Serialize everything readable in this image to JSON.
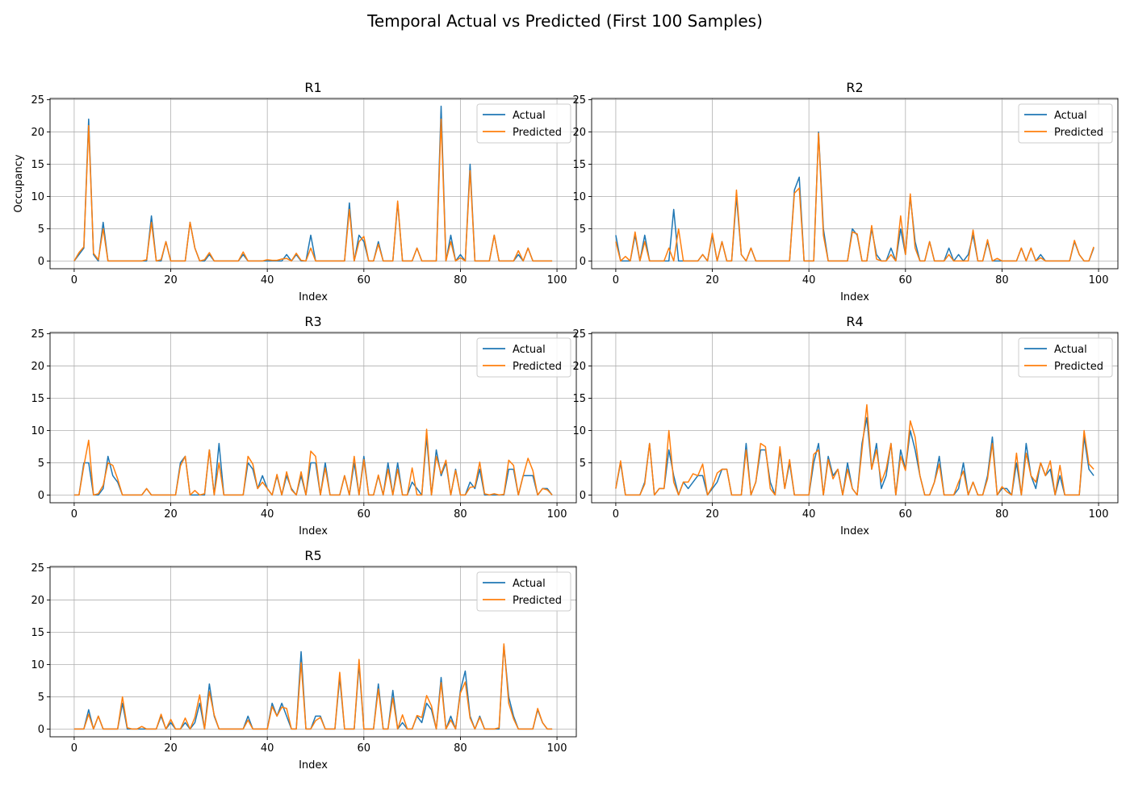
{
  "figure_title": "Temporal Actual vs Predicted (First 100 Samples)",
  "colors": {
    "actual": "#1f77b4",
    "predicted": "#ff7f0e",
    "grid": "#b0b0b0",
    "axis": "#000000"
  },
  "chart_data": [
    {
      "type": "line",
      "title": "R1",
      "xlabel": "Index",
      "ylabel": "Occupancy",
      "xlim": [
        -5,
        104
      ],
      "ylim": [
        -1.2,
        25.2
      ],
      "xticks": [
        0,
        20,
        40,
        60,
        80,
        100
      ],
      "yticks": [
        0,
        5,
        10,
        15,
        20,
        25
      ],
      "grid": true,
      "legend": "top-right",
      "series": [
        {
          "name": "Actual",
          "values": [
            0,
            1,
            2,
            22,
            1,
            0,
            6,
            0,
            0,
            0,
            0,
            0,
            0,
            0,
            0,
            0,
            7,
            0,
            0,
            3,
            0,
            0,
            0,
            0,
            6,
            2,
            0,
            0,
            1,
            0,
            0,
            0,
            0,
            0,
            0,
            1,
            0,
            0,
            0,
            0,
            0,
            0,
            0,
            0,
            1,
            0,
            1,
            0,
            0,
            4,
            0,
            0,
            0,
            0,
            0,
            0,
            0,
            9,
            0,
            4,
            3,
            0,
            0,
            3,
            0,
            0,
            0,
            9,
            0,
            0,
            0,
            2,
            0,
            0,
            0,
            0,
            24,
            0,
            4,
            0,
            1,
            0,
            15,
            0,
            0,
            0,
            0,
            4,
            0,
            0,
            0,
            0,
            1,
            0,
            2,
            0,
            0,
            0,
            0,
            0
          ]
        },
        {
          "name": "Predicted",
          "values": [
            0,
            1.3,
            2.2,
            21,
            1.2,
            0.2,
            5,
            0,
            0,
            0,
            0,
            0,
            0,
            0,
            0,
            0.2,
            6,
            0,
            0.2,
            3,
            0,
            0,
            0,
            0,
            6,
            2,
            0,
            0.2,
            1.3,
            0,
            0,
            0,
            0,
            0,
            0,
            1.4,
            0,
            0,
            0,
            0,
            0.2,
            0.1,
            0.1,
            0.3,
            0.4,
            0,
            1.2,
            0.1,
            0,
            2,
            0,
            0,
            0,
            0,
            0,
            0,
            0,
            8,
            0,
            3,
            3.8,
            0,
            0,
            2.6,
            0,
            0,
            0,
            9.3,
            0,
            0,
            0,
            2,
            0,
            0,
            0,
            0,
            22,
            0,
            3,
            0,
            0.5,
            0,
            14,
            0,
            0,
            0,
            0,
            4,
            0,
            0,
            0,
            0,
            1.6,
            0,
            2,
            0,
            0,
            0,
            0,
            0
          ]
        }
      ]
    },
    {
      "type": "line",
      "title": "R2",
      "xlabel": "Index",
      "ylabel": "",
      "xlim": [
        -5,
        104
      ],
      "ylim": [
        -1.2,
        25.2
      ],
      "xticks": [
        0,
        20,
        40,
        60,
        80,
        100
      ],
      "yticks": [
        0,
        5,
        10,
        15,
        20,
        25
      ],
      "grid": true,
      "legend": "top-right",
      "series": [
        {
          "name": "Actual",
          "values": [
            4,
            0,
            0,
            0,
            4,
            0,
            4,
            0,
            0,
            0,
            0,
            0,
            8,
            0,
            0,
            0,
            0,
            0,
            1,
            0,
            4,
            0,
            3,
            0,
            0,
            10,
            1,
            0,
            2,
            0,
            0,
            0,
            0,
            0,
            0,
            0,
            0,
            11,
            13,
            0,
            0,
            0,
            20,
            5,
            0,
            0,
            0,
            0,
            0,
            5,
            4,
            0,
            0,
            5,
            1,
            0,
            0,
            2,
            0,
            5,
            1,
            10,
            3,
            0,
            0,
            3,
            0,
            0,
            0,
            2,
            0,
            1,
            0,
            1,
            4,
            0,
            0,
            3,
            0,
            0,
            0,
            0,
            0,
            0,
            2,
            0,
            2,
            0,
            1,
            0,
            0,
            0,
            0,
            0,
            0,
            3,
            1,
            0,
            0,
            2
          ]
        },
        {
          "name": "Predicted",
          "values": [
            3,
            0,
            0.7,
            0,
            4.5,
            0,
            3,
            0,
            0,
            0,
            0,
            2,
            0,
            5,
            0,
            0,
            0,
            0,
            1,
            0,
            4.3,
            0,
            3,
            0,
            0,
            11,
            1,
            0,
            2,
            0,
            0,
            0,
            0,
            0,
            0,
            0,
            0,
            10.5,
            11.3,
            0,
            0,
            0,
            19.8,
            4,
            0,
            0,
            0,
            0,
            0,
            4.5,
            4.2,
            0,
            0,
            5.5,
            0.3,
            0,
            0,
            1,
            0,
            7,
            1,
            10.4,
            2,
            0,
            0,
            3,
            0,
            0,
            0,
            1,
            0,
            0,
            0,
            0,
            4.8,
            0,
            0,
            3.3,
            0,
            0.4,
            0,
            0,
            0,
            0,
            2,
            0,
            2,
            0,
            0.5,
            0,
            0,
            0,
            0,
            0,
            0,
            3.2,
            1,
            0,
            0,
            2.2
          ]
        }
      ]
    },
    {
      "type": "line",
      "title": "R3",
      "xlabel": "Index",
      "ylabel": "",
      "xlim": [
        -5,
        104
      ],
      "ylim": [
        -1.2,
        25.2
      ],
      "xticks": [
        0,
        20,
        40,
        60,
        80,
        100
      ],
      "yticks": [
        0,
        5,
        10,
        15,
        20,
        25
      ],
      "grid": true,
      "legend": "top-right",
      "series": [
        {
          "name": "Actual",
          "values": [
            0,
            0,
            5,
            5,
            0,
            0,
            1,
            6,
            3,
            2,
            0,
            0,
            0,
            0,
            0,
            1,
            0,
            0,
            0,
            0,
            0,
            0,
            5,
            6,
            0,
            0,
            0,
            0,
            7,
            0,
            8,
            0,
            0,
            0,
            0,
            0,
            5,
            4,
            1,
            3,
            1,
            0,
            3,
            0,
            3,
            1,
            0,
            3,
            0,
            5,
            5,
            0,
            5,
            0,
            0,
            0,
            3,
            0,
            5,
            0,
            6,
            0,
            0,
            3,
            0,
            5,
            0,
            5,
            0,
            0,
            2,
            1,
            0,
            9,
            0,
            7,
            3,
            5,
            0,
            4,
            0,
            0,
            2,
            1,
            4,
            0,
            0,
            0,
            0,
            0,
            4,
            4,
            0,
            3,
            3,
            3,
            0,
            1,
            1,
            0
          ]
        },
        {
          "name": "Predicted",
          "values": [
            0,
            0,
            4.5,
            8.5,
            0,
            0.2,
            1.5,
            5,
            4.6,
            2.5,
            0,
            0,
            0,
            0,
            0,
            1,
            0,
            0,
            0,
            0,
            0,
            0,
            4.5,
            6,
            0,
            0.7,
            0,
            0.2,
            7,
            0,
            5,
            0,
            0,
            0,
            0,
            0,
            6,
            4.8,
            1,
            2,
            1,
            0,
            3.2,
            0,
            3.6,
            0.8,
            0,
            3.6,
            0,
            6.8,
            6,
            0,
            4.2,
            0,
            0,
            0,
            3,
            0,
            6,
            0,
            5.5,
            0,
            0,
            3.1,
            0,
            4,
            0,
            4,
            0,
            0,
            4.2,
            0,
            0,
            10.2,
            0,
            6,
            3.3,
            5.4,
            0,
            3.8,
            0,
            0,
            1.2,
            1.3,
            5.1,
            0.2,
            0,
            0.2,
            0,
            0.1,
            5.4,
            4.6,
            0,
            3,
            5.7,
            3.8,
            0,
            1,
            0.8,
            0
          ]
        }
      ]
    },
    {
      "type": "line",
      "title": "R4",
      "xlabel": "Index",
      "ylabel": "",
      "xlim": [
        -5,
        104
      ],
      "ylim": [
        -1.2,
        25.2
      ],
      "xticks": [
        0,
        20,
        40,
        60,
        80,
        100
      ],
      "yticks": [
        0,
        5,
        10,
        15,
        20,
        25
      ],
      "grid": true,
      "legend": "top-right",
      "series": [
        {
          "name": "Actual",
          "values": [
            1,
            5,
            0,
            0,
            0,
            0,
            2,
            8,
            0,
            1,
            1,
            7,
            3,
            0,
            2,
            1,
            2,
            3,
            3,
            0,
            1,
            2,
            4,
            4,
            0,
            0,
            0,
            8,
            0,
            2,
            7,
            7,
            2,
            0,
            7,
            1,
            5,
            0,
            0,
            0,
            0,
            5,
            8,
            0,
            6,
            3,
            4,
            0,
            5,
            1,
            0,
            8,
            12,
            4,
            8,
            1,
            3,
            8,
            0,
            7,
            4,
            10,
            7,
            3,
            0,
            0,
            2,
            6,
            0,
            0,
            0,
            1,
            5,
            0,
            2,
            0,
            0,
            3,
            9,
            0,
            1,
            1,
            0,
            5,
            0,
            8,
            3,
            1,
            5,
            3,
            4,
            0,
            3,
            0,
            0,
            0,
            0,
            9,
            4,
            3
          ]
        },
        {
          "name": "Predicted",
          "values": [
            1,
            5.3,
            0,
            0,
            0,
            0,
            1.7,
            8,
            0,
            1,
            1,
            10,
            2,
            0,
            2,
            2,
            3.3,
            3,
            4.8,
            0,
            1.3,
            3.4,
            4,
            4,
            0,
            0,
            0,
            7,
            0,
            2,
            8,
            7.5,
            1,
            0,
            7.5,
            1,
            5.5,
            0,
            0,
            0,
            0,
            6.3,
            7,
            0,
            5.5,
            2.5,
            4,
            0,
            4,
            1,
            0,
            7,
            14,
            4,
            7,
            2,
            4,
            8,
            0,
            6,
            3.8,
            11.5,
            9,
            3,
            0,
            0,
            2,
            4.8,
            0,
            0,
            0,
            2,
            3.7,
            0,
            2,
            0,
            0,
            2.5,
            8,
            0,
            1.3,
            0.5,
            0,
            6.5,
            0,
            6.5,
            3,
            2,
            5,
            3,
            5.3,
            0,
            4.6,
            0,
            0,
            0,
            0,
            10,
            4.8,
            4
          ]
        }
      ]
    },
    {
      "type": "line",
      "title": "R5",
      "xlabel": "Index",
      "ylabel": "",
      "xlim": [
        -5,
        104
      ],
      "ylim": [
        -1.2,
        25.2
      ],
      "xticks": [
        0,
        20,
        40,
        60,
        80,
        100
      ],
      "yticks": [
        0,
        5,
        10,
        15,
        20,
        25
      ],
      "grid": true,
      "legend": "top-right",
      "series": [
        {
          "name": "Actual",
          "values": [
            0,
            0,
            0,
            3,
            0,
            2,
            0,
            0,
            0,
            0,
            4,
            0,
            0,
            0,
            0,
            0,
            0,
            0,
            2,
            0,
            1,
            0,
            0,
            1,
            0,
            1,
            4,
            0,
            7,
            2,
            0,
            0,
            0,
            0,
            0,
            0,
            2,
            0,
            0,
            0,
            0,
            4,
            2,
            4,
            2,
            0,
            0,
            12,
            0,
            0,
            2,
            2,
            0,
            0,
            0,
            8,
            0,
            0,
            0,
            10,
            0,
            0,
            0,
            7,
            0,
            0,
            6,
            0,
            1,
            0,
            0,
            2,
            1,
            4,
            3,
            0,
            8,
            0,
            2,
            0,
            6,
            9,
            2,
            0,
            2,
            0,
            0,
            0,
            0,
            13,
            5,
            2,
            0,
            0,
            0,
            0,
            3,
            1,
            0,
            0
          ]
        },
        {
          "name": "Predicted",
          "values": [
            0,
            0,
            0,
            2.3,
            0,
            2,
            0,
            0,
            0,
            0,
            5,
            0.2,
            0,
            0,
            0.4,
            0,
            0,
            0,
            2.3,
            0,
            1.5,
            0,
            0,
            1.7,
            0,
            1.8,
            5.3,
            0,
            5.8,
            2.2,
            0,
            0,
            0,
            0,
            0,
            0,
            1.4,
            0,
            0,
            0,
            0,
            3.5,
            2,
            3.4,
            3.2,
            0,
            0,
            10.3,
            0,
            0,
            1.3,
            1.8,
            0,
            0,
            0,
            8.8,
            0,
            0,
            0,
            10.8,
            0,
            0,
            0,
            6.2,
            0,
            0,
            4.8,
            0,
            2.2,
            0,
            0,
            2.1,
            1.8,
            5.2,
            3.6,
            0,
            7.2,
            0,
            1.4,
            0,
            5.6,
            7.3,
            1.7,
            0,
            1.8,
            0,
            0,
            0,
            0.2,
            13.2,
            4,
            1.6,
            0,
            0,
            0,
            0,
            3.2,
            1,
            0,
            0
          ]
        }
      ]
    }
  ]
}
